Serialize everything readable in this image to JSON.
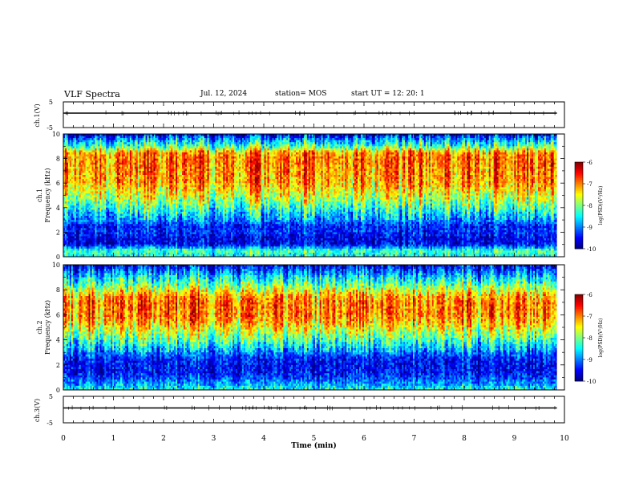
{
  "header": {
    "title": "VLF Spectra",
    "date": "Jul. 12, 2024",
    "station": "station= MOS",
    "start": "start UT = 12: 20: 1"
  },
  "chart_data": [
    {
      "type": "line",
      "ylabel": "ch.1(V)",
      "y_ticks": [
        "5",
        "-5"
      ],
      "ylim": [
        -5,
        5
      ],
      "xlim": [
        0,
        10
      ],
      "series": [
        {
          "x": [
            0,
            9.85
          ],
          "values": [
            0,
            0
          ]
        }
      ]
    },
    {
      "type": "heatmap",
      "ylabel_channel": "ch.1",
      "ylabel": "Frequency (kHz)",
      "y_ticks": [
        "0",
        "2",
        "4",
        "6",
        "8",
        "10"
      ],
      "ylim": [
        0,
        10
      ],
      "xlim": [
        0,
        9.85
      ],
      "colorbar": {
        "label": "log(PSD)(V²/Hz)",
        "ticks": [
          "-6",
          "-7",
          "-8",
          "-9",
          "-10"
        ],
        "range": [
          -10,
          -6
        ]
      },
      "profile": {
        "freq_khz": [
          0,
          0.5,
          1,
          1.5,
          2,
          2.5,
          3,
          3.5,
          4,
          5,
          6,
          7,
          8,
          8.5,
          9,
          9.5,
          10
        ],
        "log_psd": [
          -8.5,
          -8.2,
          -9.5,
          -9.6,
          -9.3,
          -9.4,
          -8.9,
          -8.6,
          -8.2,
          -7.6,
          -7.1,
          -7.0,
          -6.9,
          -7.1,
          -8.2,
          -8.8,
          -9.6
        ]
      }
    },
    {
      "type": "heatmap",
      "ylabel_channel": "ch.2",
      "ylabel": "Frequency (kHz)",
      "y_ticks": [
        "0",
        "2",
        "4",
        "6",
        "8",
        "10"
      ],
      "ylim": [
        0,
        10
      ],
      "xlim": [
        0,
        9.85
      ],
      "colorbar": {
        "label": "log(PSD)(V²/Hz)",
        "ticks": [
          "-6",
          "-7",
          "-8",
          "-9",
          "-10"
        ],
        "range": [
          -10,
          -6
        ]
      },
      "profile": {
        "freq_khz": [
          0,
          0.5,
          1,
          1.5,
          2,
          2.5,
          3,
          3.5,
          4,
          5,
          5.5,
          6,
          7,
          7.5,
          8,
          8.5,
          9,
          9.5,
          10
        ],
        "log_psd": [
          -8.4,
          -8.9,
          -9.3,
          -9.5,
          -9.5,
          -9.4,
          -9.0,
          -8.6,
          -8.2,
          -7.5,
          -7.2,
          -7.0,
          -7.0,
          -7.2,
          -7.7,
          -8.2,
          -8.6,
          -9.1,
          -9.6
        ]
      }
    },
    {
      "type": "line",
      "ylabel": "ch.3(V)",
      "y_ticks": [
        "5",
        "-5"
      ],
      "ylim": [
        -5,
        5
      ],
      "xlim": [
        0,
        10
      ],
      "xlabel": "Time (min)",
      "x_ticks": [
        "0",
        "1",
        "2",
        "3",
        "4",
        "5",
        "6",
        "7",
        "8",
        "9",
        "10"
      ],
      "series": [
        {
          "x": [
            0,
            9.85
          ],
          "values": [
            0,
            0
          ]
        }
      ]
    }
  ]
}
